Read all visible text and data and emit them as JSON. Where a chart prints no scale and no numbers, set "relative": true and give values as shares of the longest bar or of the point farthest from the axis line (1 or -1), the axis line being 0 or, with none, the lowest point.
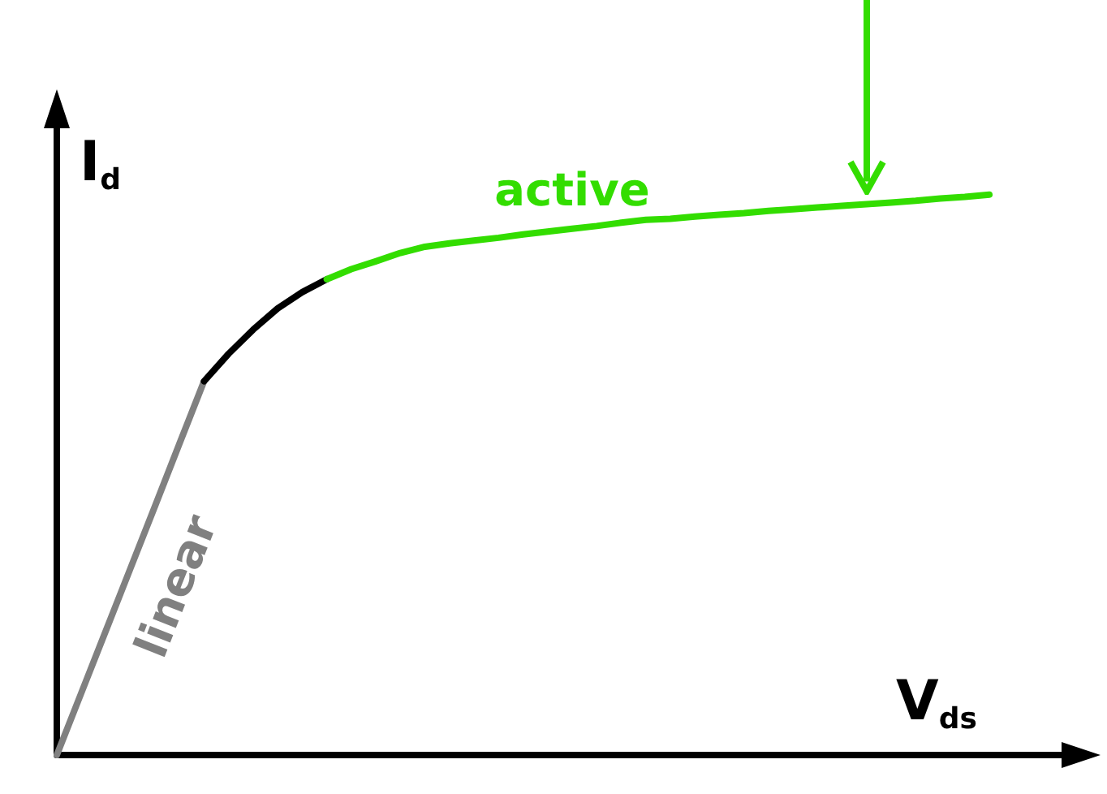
{
  "chart_data": {
    "type": "line",
    "xlabel": "V$_{ds}$",
    "ylabel": "I$_{d}$",
    "relative": true,
    "grid": false,
    "legend": false,
    "marker": "none",
    "categories": [
      null,
      null,
      null,
      null,
      null,
      null,
      null,
      null,
      null,
      null,
      null,
      null,
      null,
      null,
      null,
      null,
      null,
      null,
      null,
      null,
      null,
      null,
      null,
      null,
      null,
      null,
      null,
      null,
      null,
      null,
      null,
      null,
      null,
      null,
      null,
      null,
      null,
      null,
      null,
      null,
      null,
      null,
      null
    ],
    "series": [
      {
        "name": "linear",
        "color": "#808080",
        "values": [
          0,
          0.111,
          0.222,
          0.333,
          0.444,
          0.556,
          0.667,
          null,
          null,
          null,
          null,
          null,
          null,
          null,
          null,
          null,
          null,
          null,
          null,
          null,
          null,
          null,
          null,
          null,
          null,
          null,
          null,
          null,
          null,
          null,
          null,
          null,
          null,
          null,
          null,
          null,
          null,
          null,
          null,
          null,
          null,
          null,
          null
        ]
      },
      {
        "color": "#000000",
        "values": [
          null,
          null,
          null,
          null,
          null,
          null,
          0.667,
          0.716,
          0.759,
          0.797,
          0.826,
          0.849,
          null,
          null,
          null,
          null,
          null,
          null,
          null,
          null,
          null,
          null,
          null,
          null,
          null,
          null,
          null,
          null,
          null,
          null,
          null,
          null,
          null,
          null,
          null,
          null,
          null,
          null,
          null,
          null,
          null,
          null,
          null
        ]
      },
      {
        "name": "active",
        "color": "#33dd00",
        "values": [
          null,
          null,
          null,
          null,
          null,
          null,
          null,
          null,
          null,
          null,
          null,
          0.849,
          0.867,
          0.881,
          0.896,
          0.907,
          0.913,
          0.918,
          0.923,
          0.929,
          0.934,
          0.939,
          0.944,
          0.95,
          0.955,
          0.957,
          0.961,
          0.964,
          0.967,
          0.971,
          0.974,
          0.977,
          0.98,
          0.983,
          0.986,
          0.989,
          0.993,
          0.996,
          1,
          null,
          null,
          null,
          null
        ]
      }
    ]
  }
}
